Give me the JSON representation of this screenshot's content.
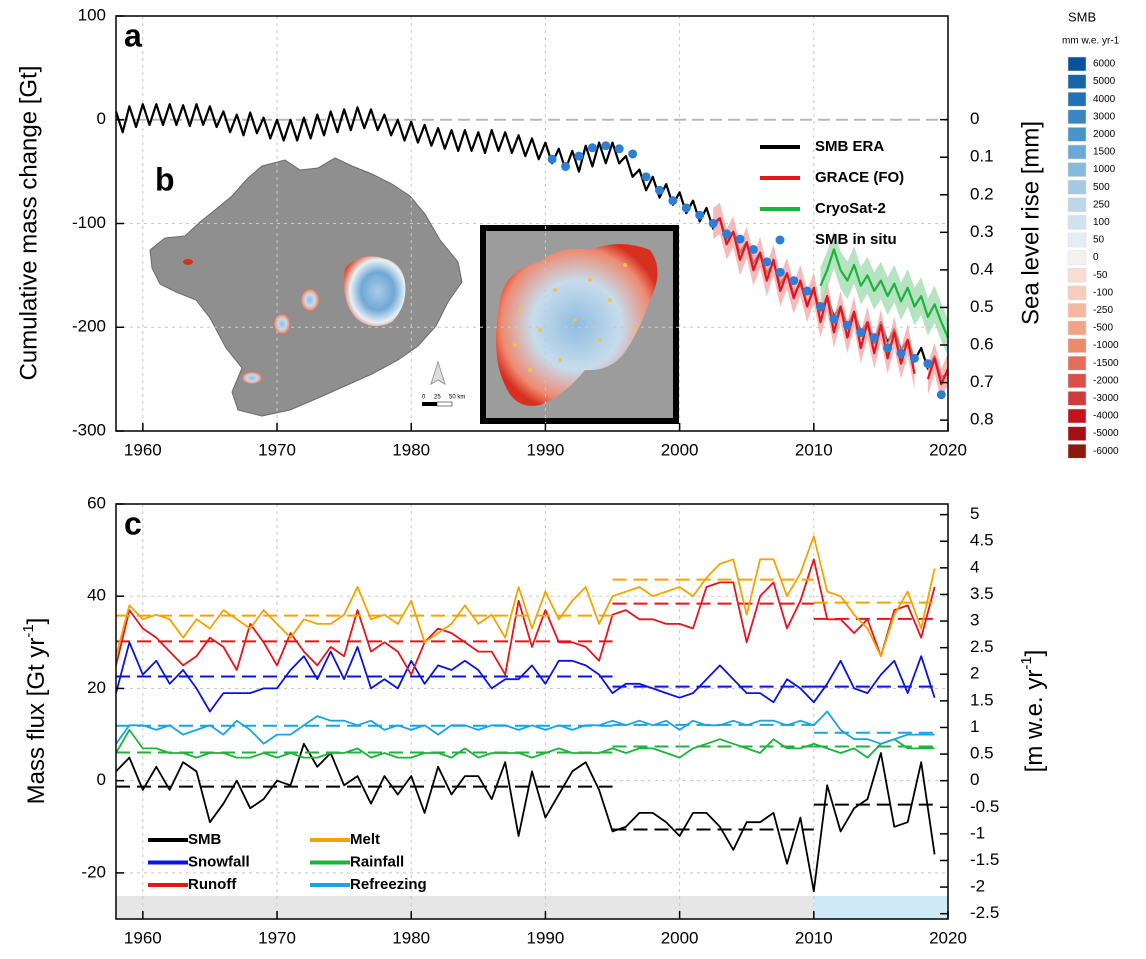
{
  "chart_data": [
    {
      "type": "line",
      "panel_label": "a",
      "y_label": "Cumulative mass change [Gt]",
      "y2_label": "Sea level rise [mm]",
      "xlim": [
        1958,
        2020
      ],
      "xticks": [
        1960,
        1970,
        1980,
        1990,
        2000,
        2010,
        2020
      ],
      "ylim": [
        -300,
        100
      ],
      "yticks": [
        -300,
        -200,
        -100,
        0,
        100
      ],
      "y2lim": [
        -0.276,
        0.829
      ],
      "y2_inverted": true,
      "y2ticks": [
        0,
        0.1,
        0.2,
        0.3,
        0.4,
        0.5,
        0.6,
        0.7,
        0.8
      ],
      "grid": true,
      "series": [
        {
          "name": "SMB ERA",
          "type": "line",
          "color": "#000000",
          "x": [
            1958,
            1958.5,
            1959,
            1959.5,
            1960,
            1960.5,
            1961,
            1961.5,
            1962,
            1962.5,
            1963,
            1963.5,
            1964,
            1964.5,
            1965,
            1965.5,
            1966,
            1966.5,
            1967,
            1967.5,
            1968,
            1968.5,
            1969,
            1969.5,
            1970,
            1970.5,
            1971,
            1971.5,
            1972,
            1972.5,
            1973,
            1973.5,
            1974,
            1974.5,
            1975,
            1975.5,
            1976,
            1976.5,
            1977,
            1977.5,
            1978,
            1978.5,
            1979,
            1979.5,
            1980,
            1980.5,
            1981,
            1981.5,
            1982,
            1982.5,
            1983,
            1983.5,
            1984,
            1984.5,
            1985,
            1985.5,
            1986,
            1986.5,
            1987,
            1987.5,
            1988,
            1988.5,
            1989,
            1989.5,
            1990,
            1990.5,
            1991,
            1991.5,
            1992,
            1992.5,
            1993,
            1993.5,
            1994,
            1994.5,
            1995,
            1995.5,
            1996,
            1996.5,
            1997,
            1997.5,
            1998,
            1998.5,
            1999,
            1999.5,
            2000,
            2000.5,
            2001,
            2001.5,
            2002,
            2002.5,
            2003,
            2003.5,
            2004,
            2004.5,
            2005,
            2005.5,
            2006,
            2006.5,
            2007,
            2007.5,
            2008,
            2008.5,
            2009,
            2009.5,
            2010,
            2010.5,
            2011,
            2011.5,
            2012,
            2012.5,
            2013,
            2013.5,
            2014,
            2014.5,
            2015,
            2015.5,
            2016,
            2016.5,
            2017,
            2017.5,
            2018,
            2018.5,
            2019,
            2019.5,
            2020
          ],
          "values": [
            8,
            -12,
            13,
            -7,
            15,
            -5,
            15,
            -5,
            15,
            -5,
            14,
            -6,
            15,
            -5,
            13,
            -7,
            8,
            -12,
            5,
            -15,
            7,
            -13,
            2,
            -18,
            0,
            -20,
            0,
            -20,
            2,
            -18,
            5,
            -15,
            8,
            -12,
            10,
            -10,
            12,
            -8,
            10,
            -10,
            5,
            -15,
            0,
            -20,
            -2,
            -22,
            -5,
            -25,
            -8,
            -28,
            -10,
            -30,
            -10,
            -30,
            -12,
            -32,
            -10,
            -30,
            -12,
            -32,
            -15,
            -35,
            -18,
            -38,
            -22,
            -42,
            -28,
            -48,
            -30,
            -50,
            -25,
            -45,
            -22,
            -42,
            -22,
            -42,
            -35,
            -55,
            -48,
            -68,
            -55,
            -75,
            -62,
            -82,
            -70,
            -90,
            -78,
            -98,
            -85,
            -105,
            -95,
            -115,
            -108,
            -128,
            -118,
            -138,
            -128,
            -148,
            -138,
            -158,
            -148,
            -168,
            -158,
            -178,
            -165,
            -185,
            -170,
            -190,
            -180,
            -200,
            -185,
            -205,
            -195,
            -215,
            -195,
            -215,
            -202,
            -222,
            -212,
            -232,
            -220,
            -240,
            -228,
            -248,
            -245
          ]
        },
        {
          "name": "GRACE (FO)",
          "type": "line",
          "color": "#e8141c",
          "band_color": "#f4a3a3",
          "uncertainty": 15,
          "x": [
            2002.5,
            2003,
            2003.5,
            2004,
            2004.5,
            2005,
            2005.5,
            2006,
            2006.5,
            2007,
            2007.5,
            2008,
            2008.5,
            2009,
            2009.5,
            2010,
            2010.5,
            2011,
            2011.5,
            2012,
            2012.5,
            2013,
            2013.5,
            2014,
            2014.5,
            2015,
            2015.5,
            2016,
            2016.5,
            2017,
            2017.5,
            2018,
            2018.5,
            2019,
            2019.5,
            2020
          ],
          "values": [
            -100,
            -95,
            -120,
            -108,
            -135,
            -118,
            -145,
            -128,
            -155,
            -135,
            -165,
            -148,
            -172,
            -155,
            -180,
            -162,
            -195,
            -170,
            -205,
            -180,
            -210,
            -185,
            -220,
            -195,
            -225,
            -198,
            -230,
            -205,
            -235,
            -212,
            -245,
            null,
            -250,
            -230,
            -255,
            -240
          ]
        },
        {
          "name": "CryoSat-2",
          "type": "line",
          "color": "#1db33c",
          "band_color": "#9ed9ab",
          "uncertainty": 18,
          "x": [
            2010.5,
            2011,
            2011.5,
            2012,
            2012.5,
            2013,
            2013.5,
            2014,
            2014.5,
            2015,
            2015.5,
            2016,
            2016.5,
            2017,
            2017.5,
            2018,
            2018.5,
            2019,
            2019.5,
            2020
          ],
          "values": [
            -160,
            -145,
            -125,
            -145,
            -155,
            -140,
            -160,
            -150,
            -165,
            -155,
            -170,
            -158,
            -175,
            -162,
            -180,
            -170,
            -190,
            -178,
            -195,
            -210
          ]
        },
        {
          "name": "SMB in situ",
          "type": "scatter",
          "color": "#2c7fd4",
          "x": [
            1990.5,
            1991.5,
            1992.5,
            1993.5,
            1994.5,
            1995.5,
            1996.5,
            1997.5,
            1998.5,
            1999.5,
            2000.5,
            2001.5,
            2002.5,
            2003.5,
            2004.5,
            2005.5,
            2006.5,
            2007.5,
            2008.5,
            2009.5,
            2010.5,
            2011.5,
            2012.5,
            2013.5,
            2014.5,
            2015.5,
            2016.5,
            2017.5,
            2018.5,
            2019.5
          ],
          "values": [
            -38,
            -45,
            -35,
            -27,
            -25,
            -28,
            -33,
            -55,
            -68,
            -78,
            -85,
            -92,
            -100,
            -110,
            -115,
            -125,
            -137,
            -147,
            -155,
            -165,
            -180,
            -192,
            -198,
            -205,
            -210,
            -220,
            -225,
            -230,
            -235,
            -265
          ]
        }
      ]
    },
    {
      "type": "line",
      "panel_label": "c",
      "y_label": [
        "Mass flux [Gt yr",
        "-1",
        "]"
      ],
      "y2_label": [
        "[m w.e. yr",
        "-1",
        "]"
      ],
      "xlim": [
        1958,
        2020
      ],
      "xticks": [
        1960,
        1970,
        1980,
        1990,
        2000,
        2010,
        2020
      ],
      "ylim": [
        -30,
        60
      ],
      "yticks": [
        -20,
        0,
        20,
        40,
        60
      ],
      "y2lim": [
        -2.6,
        5.2
      ],
      "y2ticks": [
        -2.5,
        -2,
        -1.5,
        -1,
        -0.5,
        0,
        0.5,
        1,
        1.5,
        2,
        2.5,
        3,
        3.5,
        4,
        4.5,
        5
      ],
      "grid": true,
      "shading": [
        {
          "from": 1958,
          "to": 2010,
          "top": -25,
          "color": "#e6e6e6"
        },
        {
          "from": 2010,
          "to": 2020,
          "top": -25,
          "color": "#cfeaf7"
        }
      ],
      "mean_periods": [
        [
          1958,
          1995
        ],
        [
          1995,
          2010
        ],
        [
          2010,
          2019
        ]
      ],
      "x": [
        1958,
        1959,
        1960,
        1961,
        1962,
        1963,
        1964,
        1965,
        1966,
        1967,
        1968,
        1969,
        1970,
        1971,
        1972,
        1973,
        1974,
        1975,
        1976,
        1977,
        1978,
        1979,
        1980,
        1981,
        1982,
        1983,
        1984,
        1985,
        1986,
        1987,
        1988,
        1989,
        1990,
        1991,
        1992,
        1993,
        1994,
        1995,
        1996,
        1997,
        1998,
        1999,
        2000,
        2001,
        2002,
        2003,
        2004,
        2005,
        2006,
        2007,
        2008,
        2009,
        2010,
        2011,
        2012,
        2013,
        2014,
        2015,
        2016,
        2017,
        2018,
        2019
      ],
      "series": [
        {
          "name": "SMB",
          "color": "#000000",
          "period_means": [
            -1.3,
            -10.6,
            -5.2
          ],
          "values": [
            2,
            5,
            -2,
            3,
            -2,
            4,
            2,
            -9,
            -5,
            0,
            -6,
            -4,
            0,
            -1,
            8,
            3,
            6,
            -1,
            1,
            -5,
            1,
            -3,
            1,
            -7,
            3,
            -3,
            1,
            1,
            -4,
            4,
            -12,
            2,
            -8,
            -3,
            2,
            4,
            -2,
            -11,
            -10,
            -7,
            -7,
            -9,
            -12,
            -7,
            -7,
            -10,
            -15,
            -9,
            -9,
            -7,
            -18,
            -8,
            -24,
            -1,
            -11,
            -6,
            -4,
            6,
            -10,
            -9,
            4,
            -16
          ]
        },
        {
          "name": "Snowfall",
          "color": "#0a14e0",
          "period_means": [
            22.6,
            20.4,
            20.4
          ],
          "values": [
            19,
            30,
            23,
            26,
            21,
            24,
            20,
            15,
            19,
            19,
            19,
            20,
            20,
            24,
            27,
            22,
            28,
            22,
            29,
            20,
            22,
            20,
            26,
            21,
            25,
            24,
            26,
            24,
            20,
            22,
            22,
            25,
            21,
            26,
            26,
            25,
            23,
            19,
            21,
            21,
            20,
            19,
            18,
            19,
            22,
            25,
            22,
            19,
            19,
            17,
            22,
            20,
            17,
            21,
            26,
            20,
            19,
            23,
            26,
            19,
            27,
            18
          ]
        },
        {
          "name": "Runoff",
          "color": "#e8141c",
          "period_means": [
            30.2,
            38.4,
            35.1
          ],
          "values": [
            25,
            37,
            33,
            31,
            28,
            25,
            27,
            31,
            29,
            24,
            34,
            30,
            25,
            32,
            28,
            25,
            29,
            27,
            37,
            28,
            30,
            28,
            23,
            30,
            33,
            32,
            30,
            28,
            28,
            23,
            39,
            29,
            37,
            30,
            30,
            29,
            26,
            36,
            37,
            35,
            35,
            34,
            34,
            33,
            42,
            43,
            43,
            30,
            40,
            43,
            33,
            39,
            48,
            35,
            35,
            32,
            35,
            27,
            37,
            38,
            31,
            42
          ]
        },
        {
          "name": "Melt",
          "color": "#f5a300",
          "period_means": [
            35.8,
            43.6,
            38.6
          ],
          "values": [
            27,
            38,
            35,
            36,
            35,
            31,
            35,
            33,
            37,
            35,
            33,
            37,
            34,
            31,
            35,
            34,
            34,
            36,
            42,
            35,
            36,
            34,
            39,
            30,
            32,
            34,
            38,
            34,
            36,
            31,
            42,
            33,
            41,
            35,
            39,
            42,
            34,
            40,
            41,
            42,
            40,
            41,
            42,
            40,
            44,
            47,
            48,
            36,
            48,
            48,
            40,
            45,
            53,
            41,
            40,
            36,
            33,
            27,
            36,
            41,
            33,
            46
          ]
        },
        {
          "name": "Rainfall",
          "color": "#1db33c",
          "period_means": [
            6.1,
            7.4,
            7.4
          ],
          "values": [
            6,
            11,
            7,
            7,
            6,
            6,
            5,
            6,
            6,
            5,
            5,
            6,
            5,
            6,
            5,
            5,
            6,
            6,
            7,
            5,
            6,
            5,
            5,
            6,
            6,
            5,
            7,
            5,
            6,
            6,
            6,
            5,
            6,
            7,
            6,
            6,
            6,
            7,
            6,
            7,
            7,
            6,
            5,
            7,
            8,
            9,
            8,
            7,
            6,
            9,
            7,
            7,
            8,
            7,
            6,
            7,
            5,
            8,
            9,
            7,
            7,
            7
          ]
        },
        {
          "name": "Refreezing",
          "color": "#1aa3e0",
          "period_means": [
            11.9,
            12.1,
            10.4
          ],
          "values": [
            8,
            12,
            12,
            11,
            12,
            10,
            11,
            12,
            10,
            13,
            11,
            8,
            10,
            10,
            12,
            14,
            13,
            13,
            12,
            13,
            11,
            12,
            11,
            12,
            10,
            12,
            12,
            11,
            12,
            12,
            11,
            12,
            11,
            12,
            11,
            12,
            12,
            13,
            12,
            13,
            12,
            13,
            11,
            13,
            12,
            12,
            13,
            12,
            13,
            13,
            12,
            13,
            12,
            15,
            11,
            9,
            9,
            8,
            9,
            10,
            10,
            10
          ]
        }
      ]
    }
  ],
  "map": {
    "panel_label": "b",
    "scale_labels": [
      "0",
      "25",
      "50 km"
    ]
  },
  "colorbar": {
    "title": "SMB",
    "unit": "mm w.e. yr-1",
    "values": [
      6000,
      5000,
      4000,
      3000,
      2000,
      1500,
      1000,
      500,
      250,
      100,
      50,
      0,
      -50,
      -100,
      -250,
      -500,
      -1000,
      -1500,
      -2000,
      -3000,
      -4000,
      -5000,
      -6000
    ],
    "colors": [
      "#08519c",
      "#1565a8",
      "#2171b5",
      "#3a87c0",
      "#4a93c8",
      "#6aa9d4",
      "#84bada",
      "#a3cae3",
      "#bcd7ea",
      "#d2e3f0",
      "#e3edf5",
      "#f4f2f0",
      "#f8ddd2",
      "#f6cdbb",
      "#f4b99f",
      "#f1a383",
      "#ec8a6c",
      "#e36f5b",
      "#d95049",
      "#cf3a3a",
      "#c4131f",
      "#a50f15",
      "#8b1a0c"
    ]
  }
}
